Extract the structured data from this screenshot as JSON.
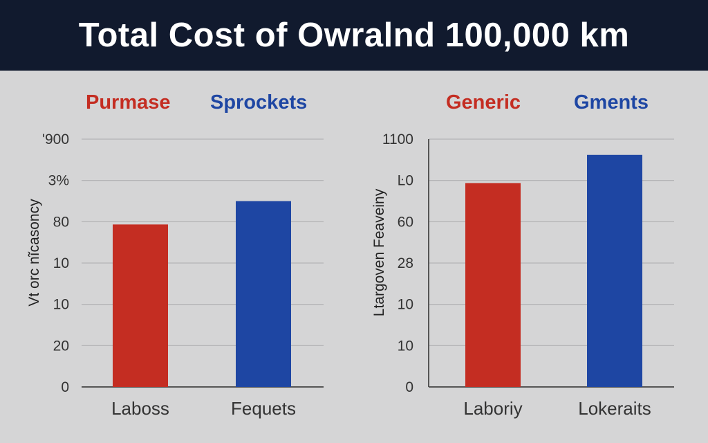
{
  "title": "Total Cost of Owralnd 100,000 km",
  "colors": {
    "header_bg": "#111a2e",
    "red": "#c42d22",
    "blue": "#1e46a3",
    "background": "#d5d5d6"
  },
  "chart_data": [
    {
      "type": "bar",
      "legend": [
        {
          "label": "Purmase",
          "color": "#c42d22"
        },
        {
          "label": "Sprockets",
          "color": "#1e46a3"
        }
      ],
      "ylabel": "Vt orc nĩcasoncy",
      "yticks": [
        "0",
        "20",
        "10",
        "10",
        "80",
        "3%",
        "'900"
      ],
      "ylim": [
        0,
        900
      ],
      "categories": [
        "Laboss",
        "Fequets"
      ],
      "values": [
        590,
        675
      ],
      "bar_colors": [
        "#c42d22",
        "#1e46a3"
      ],
      "grid": true
    },
    {
      "type": "bar",
      "legend": [
        {
          "label": "Generic",
          "color": "#c42d22"
        },
        {
          "label": "Gments",
          "color": "#1e46a3"
        }
      ],
      "ylabel": "Ltargoven Feaveiny",
      "yticks": [
        "0",
        "10",
        "10",
        "28",
        "60",
        "Ŀ0",
        "1100"
      ],
      "ylim": [
        0,
        1100
      ],
      "categories": [
        "Laboriy",
        "Lokeraits"
      ],
      "values": [
        905,
        1030
      ],
      "bar_colors": [
        "#c42d22",
        "#1e46a3"
      ],
      "grid": true
    }
  ]
}
